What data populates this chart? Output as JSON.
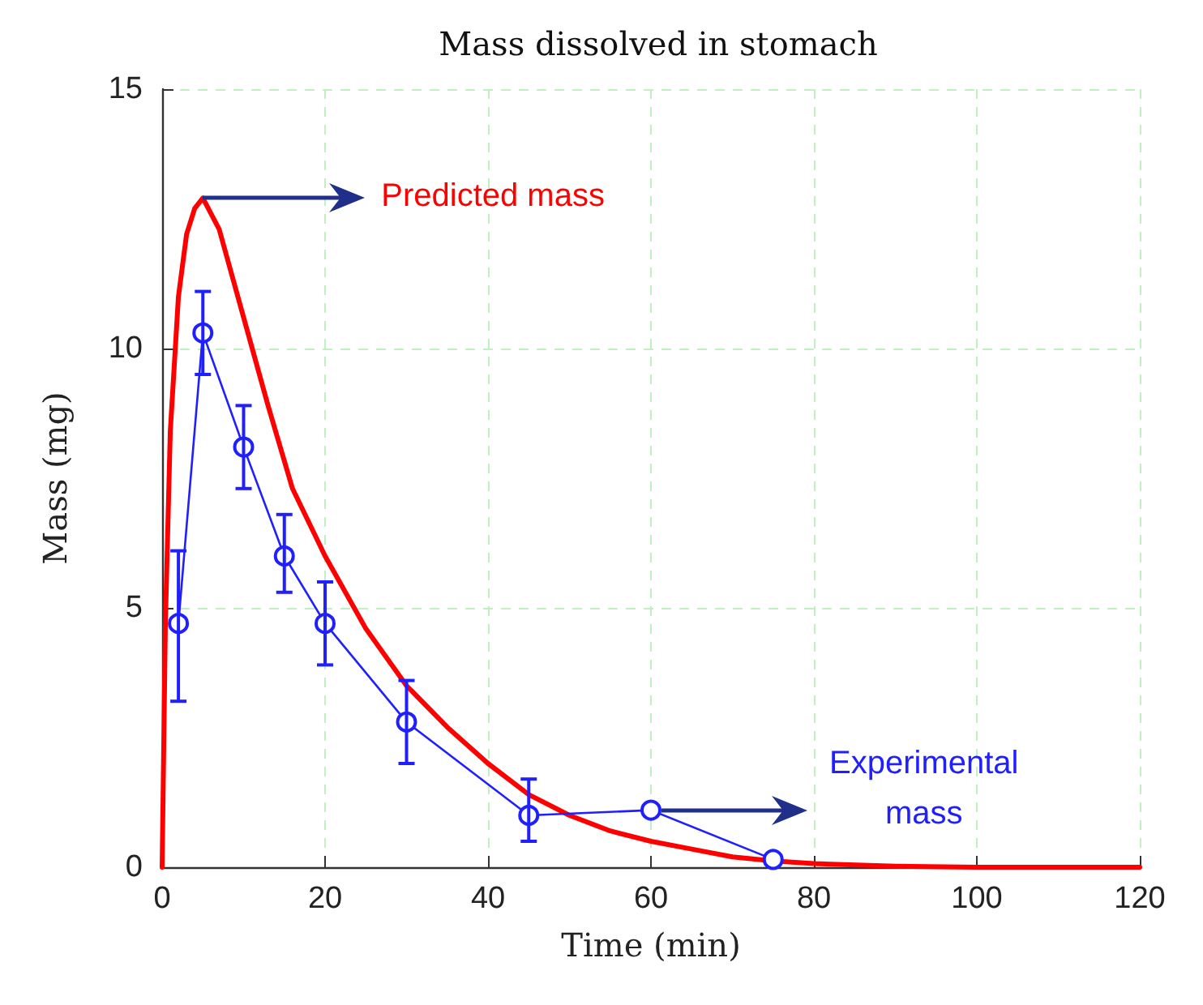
{
  "chart_data": {
    "type": "line",
    "title": "Mass dissolved in stomach",
    "xlabel": "Time (min)",
    "ylabel": "Mass (mg)",
    "xlim": [
      0,
      120
    ],
    "xticks": [
      0,
      20,
      40,
      60,
      80,
      100,
      120
    ],
    "ylim": [
      0,
      15
    ],
    "yticks": [
      0,
      5,
      10,
      15
    ],
    "grid": true,
    "series": [
      {
        "color": "#ff0000",
        "marker": "none",
        "x": [
          0,
          0.4,
          1,
          2,
          3,
          4,
          5,
          7,
          10,
          13,
          16,
          20,
          25,
          30,
          35,
          40,
          45,
          50,
          55,
          60,
          65,
          70,
          75,
          80,
          90,
          100,
          120
        ],
        "values": [
          0,
          4.7,
          8.4,
          11,
          12.2,
          12.7,
          12.9,
          12.3,
          10.6,
          8.9,
          7.3,
          6.0,
          4.6,
          3.5,
          2.7,
          2.0,
          1.4,
          1.0,
          0.7,
          0.5,
          0.35,
          0.2,
          0.12,
          0.07,
          0.02,
          0,
          0
        ]
      },
      {
        "color": "#2020ff",
        "marker": "circle",
        "x": [
          2,
          5,
          10,
          15,
          20,
          30,
          45,
          60,
          75
        ],
        "values": [
          4.7,
          10.3,
          8.1,
          6.0,
          4.7,
          2.8,
          1.0,
          1.1,
          0.15
        ],
        "errors": [
          [
            3.2,
            6.1
          ],
          [
            9.5,
            11.1
          ],
          [
            7.3,
            8.9
          ],
          [
            5.3,
            6.8
          ],
          [
            3.9,
            5.5
          ],
          [
            2.0,
            3.6
          ],
          [
            0.5,
            1.7
          ],
          null,
          null
        ]
      }
    ],
    "annotations": [
      {
        "text": "Predicted mass",
        "x": 5,
        "y": 12.9
      },
      {
        "text": "Experimental mass",
        "x": 60,
        "y": 1.1
      }
    ]
  }
}
